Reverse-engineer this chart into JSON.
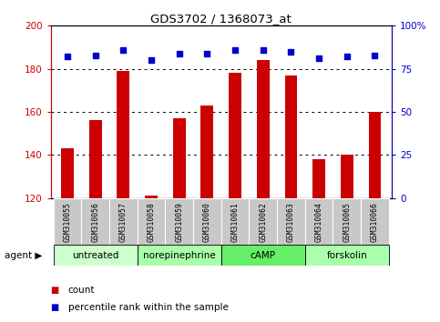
{
  "title": "GDS3702 / 1368073_at",
  "samples": [
    "GSM310055",
    "GSM310056",
    "GSM310057",
    "GSM310058",
    "GSM310059",
    "GSM310060",
    "GSM310061",
    "GSM310062",
    "GSM310063",
    "GSM310064",
    "GSM310065",
    "GSM310066"
  ],
  "counts": [
    143,
    156,
    179,
    121,
    157,
    163,
    178,
    184,
    177,
    138,
    140,
    160
  ],
  "percentiles": [
    82,
    83,
    86,
    80,
    84,
    84,
    86,
    86,
    85,
    81,
    82,
    83
  ],
  "ylim": [
    120,
    200
  ],
  "y2lim": [
    0,
    100
  ],
  "yticks": [
    120,
    140,
    160,
    180,
    200
  ],
  "y2ticks": [
    0,
    25,
    50,
    75,
    100
  ],
  "bar_color": "#cc0000",
  "dot_color": "#0000cc",
  "agent_groups": [
    {
      "label": "untreated",
      "start": 0,
      "end": 3,
      "color": "#ccffcc"
    },
    {
      "label": "norepinephrine",
      "start": 3,
      "end": 6,
      "color": "#aaffaa"
    },
    {
      "label": "cAMP",
      "start": 6,
      "end": 9,
      "color": "#66ee66"
    },
    {
      "label": "forskolin",
      "start": 9,
      "end": 12,
      "color": "#aaffaa"
    }
  ],
  "legend_count_label": "count",
  "legend_pct_label": "percentile rank within the sample",
  "agent_label": "agent",
  "sample_bg": "#c8c8c8",
  "plot_bg": "#ffffff"
}
